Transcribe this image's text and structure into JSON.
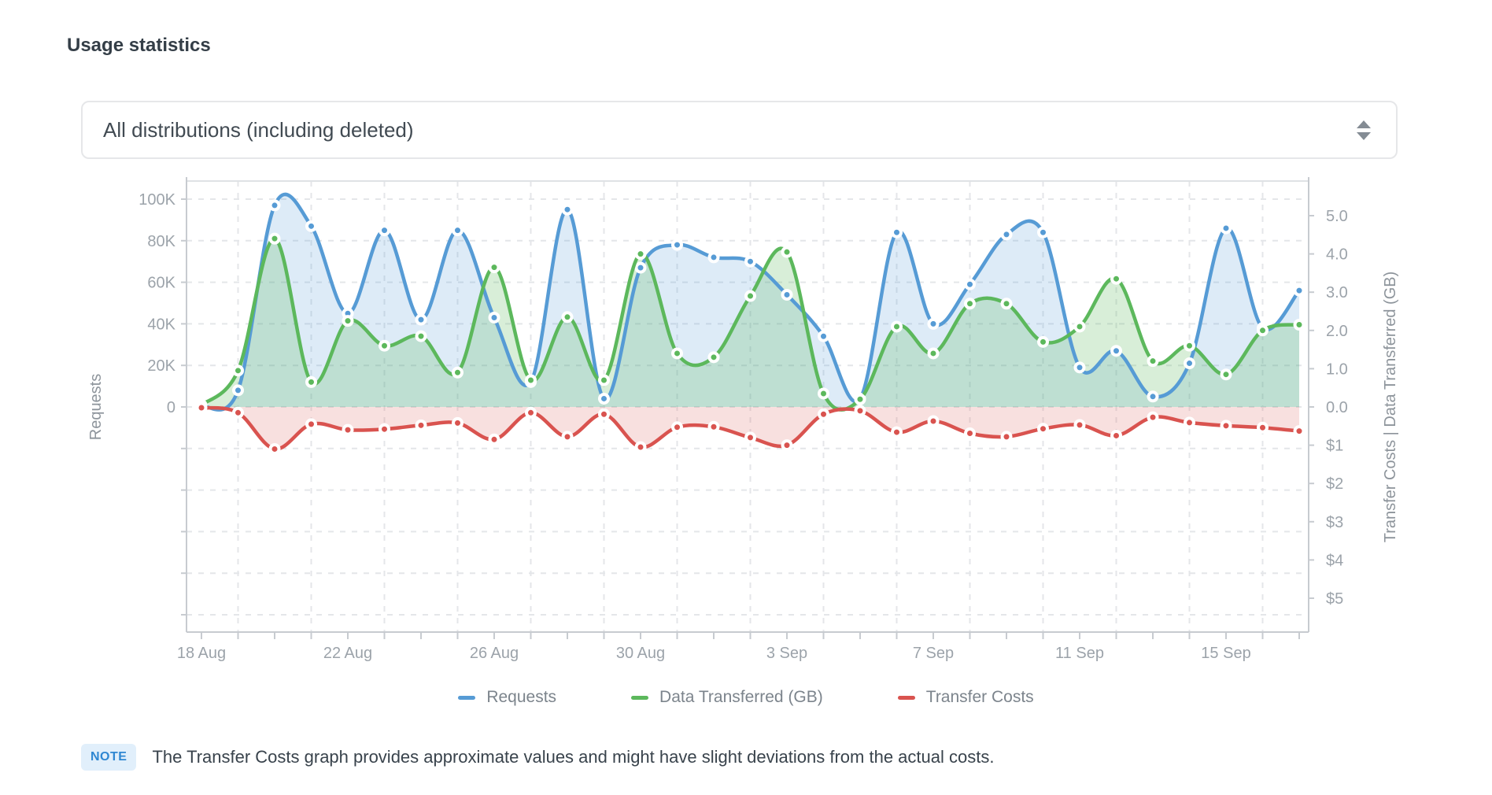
{
  "page": {
    "title": "Usage statistics"
  },
  "filter": {
    "selected": "All distributions (including deleted)"
  },
  "chart_data": {
    "type": "line",
    "title": "Usage statistics",
    "dates": [
      "18 Aug",
      "19 Aug",
      "20 Aug",
      "21 Aug",
      "22 Aug",
      "23 Aug",
      "24 Aug",
      "25 Aug",
      "26 Aug",
      "27 Aug",
      "28 Aug",
      "29 Aug",
      "30 Aug",
      "31 Aug",
      "1 Sep",
      "2 Sep",
      "3 Sep",
      "4 Sep",
      "5 Sep",
      "6 Sep",
      "7 Sep",
      "8 Sep",
      "9 Sep",
      "10 Sep",
      "11 Sep",
      "12 Sep",
      "13 Sep",
      "14 Sep",
      "15 Sep",
      "16 Sep",
      "17 Sep"
    ],
    "x_tick_labels": [
      "18 Aug",
      "22 Aug",
      "26 Aug",
      "30 Aug",
      "3 Sep",
      "7 Sep",
      "11 Sep",
      "15 Sep"
    ],
    "x_tick_label_days": [
      0,
      4,
      8,
      12,
      16,
      20,
      24,
      28
    ],
    "series": [
      {
        "name": "Requests",
        "axis": "left",
        "unit": "requests",
        "color": "#569bd5",
        "fill_opacity": 0.2,
        "values": [
          400,
          8000,
          97000,
          87000,
          45000,
          85000,
          42000,
          85000,
          43000,
          12000,
          95000,
          4000,
          67000,
          78000,
          72000,
          70000,
          54000,
          34000,
          4000,
          84000,
          40000,
          59000,
          83000,
          84000,
          19000,
          27000,
          5000,
          21000,
          86000,
          38000,
          56000
        ]
      },
      {
        "name": "Data Transferred (GB)",
        "axis": "right_gb",
        "unit": "GB",
        "color": "#5cb85c",
        "fill_opacity": 0.24,
        "values": [
          0.05,
          0.95,
          4.4,
          0.65,
          2.25,
          1.6,
          1.85,
          0.9,
          3.65,
          0.7,
          2.35,
          0.7,
          4.0,
          1.4,
          1.3,
          2.9,
          4.05,
          0.35,
          0.2,
          2.1,
          1.4,
          2.7,
          2.7,
          1.7,
          2.1,
          3.35,
          1.2,
          1.6,
          0.85,
          2.0,
          2.15
        ]
      },
      {
        "name": "Transfer Costs",
        "axis": "right_cost",
        "unit": "USD",
        "color": "#d9534f",
        "fill_opacity": 0.18,
        "values": [
          0.02,
          0.15,
          1.1,
          0.45,
          0.6,
          0.58,
          0.48,
          0.42,
          0.85,
          0.15,
          0.78,
          0.19,
          1.05,
          0.53,
          0.52,
          0.8,
          1.0,
          0.19,
          0.1,
          0.66,
          0.37,
          0.69,
          0.78,
          0.57,
          0.47,
          0.75,
          0.27,
          0.41,
          0.49,
          0.54,
          0.63
        ]
      }
    ],
    "left_axis": {
      "title": "Requests",
      "tick_labels": [
        "100K",
        "80K",
        "60K",
        "40K",
        "20K",
        "0"
      ],
      "min": 0,
      "max": 100000
    },
    "right_axis": {
      "title": "Transfer Costs | Data Transferred (GB)",
      "gb_tick_labels": [
        "5.0",
        "4.0",
        "3.0",
        "2.0",
        "1.0",
        "0.0"
      ],
      "cost_tick_labels": [
        "$1",
        "$2",
        "$3",
        "$4",
        "$5"
      ]
    },
    "grid": true,
    "legend_position": "bottom"
  },
  "note": {
    "badge": "NOTE",
    "text": "The Transfer Costs graph provides approximate values and might have slight deviations from the actual costs."
  }
}
